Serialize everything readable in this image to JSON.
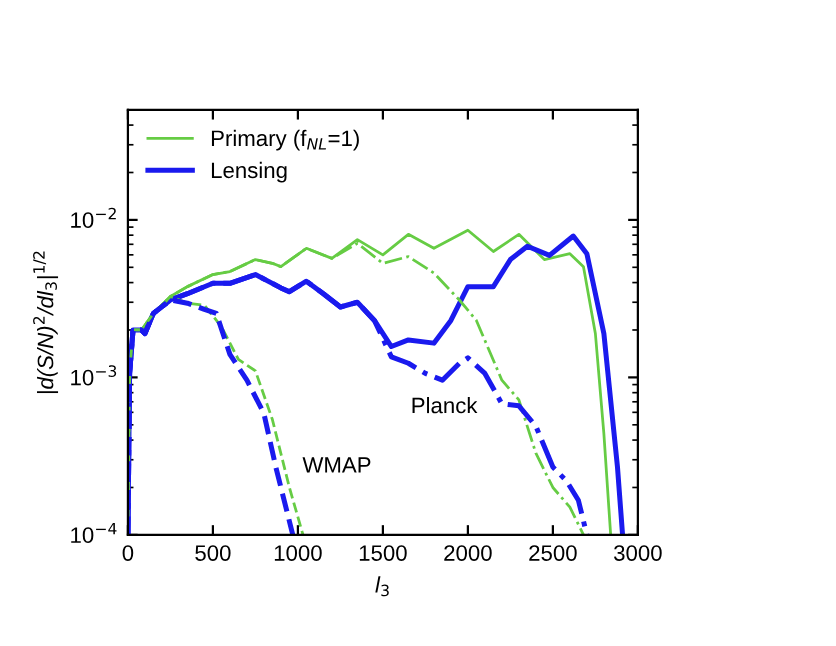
{
  "chart_data": {
    "type": "line",
    "xlabel": "l$_{3}$",
    "ylabel": "|d(S/N)$^{2}$/dl$_{3}$|$^{1/2}$",
    "log": "y",
    "legend": "top left",
    "grid": false,
    "marker": "none",
    "xlim": [
      0,
      3000
    ],
    "xticks": [
      0,
      500,
      1000,
      1500,
      2000,
      2500,
      3000
    ],
    "ylim": [
      0.0001,
      0.05
    ],
    "yticks": [
      {
        "value": 0.0001,
        "label": "10$^{−4}$"
      },
      {
        "value": 0.001,
        "label": "10$^{−3}$"
      },
      {
        "value": 0.01,
        "label": "10$^{−2}$"
      }
    ],
    "series": [
      {
        "name": "Primary (f$_{NL}$=1)",
        "color": "#66cc44",
        "line_style": "solid",
        "x": [
          0,
          10,
          30,
          80,
          150,
          250,
          350,
          500,
          600,
          750,
          850,
          900,
          1050,
          1200,
          1350,
          1500,
          1650,
          1800,
          2000,
          2150,
          2300,
          2450,
          2600,
          2680,
          2750,
          2800,
          2840
        ],
        "values": [
          0.0001,
          0.00106,
          0.002,
          0.002,
          0.00255,
          0.00326,
          0.00377,
          0.0045,
          0.0047,
          0.0056,
          0.0053,
          0.00505,
          0.0066,
          0.0057,
          0.0075,
          0.006,
          0.0081,
          0.0066,
          0.0086,
          0.0063,
          0.0081,
          0.0056,
          0.0061,
          0.00505,
          0.0019,
          0.00044,
          0.0001
        ]
      },
      {
        "name": "Lensing",
        "color": "#1a1aee",
        "line_style": "solid",
        "x": [
          0,
          10,
          30,
          80,
          100,
          150,
          250,
          350,
          500,
          600,
          750,
          900,
          950,
          1050,
          1150,
          1250,
          1350,
          1450,
          1550,
          1650,
          1800,
          1900,
          2000,
          2150,
          2250,
          2350,
          2480,
          2620,
          2700,
          2800,
          2880,
          2910
        ],
        "values": [
          0.0001,
          0.00106,
          0.002,
          0.002,
          0.0019,
          0.00255,
          0.0031,
          0.0034,
          0.00396,
          0.00396,
          0.0045,
          0.0037,
          0.0035,
          0.00408,
          0.0034,
          0.0028,
          0.003,
          0.0023,
          0.00157,
          0.00173,
          0.00165,
          0.0023,
          0.00377,
          0.00377,
          0.0056,
          0.0068,
          0.00595,
          0.0079,
          0.0061,
          0.0019,
          0.00027,
          0.0001
        ]
      },
      {
        "color": "#66cc44",
        "line_style": "dashdot",
        "x": [
          0,
          10,
          30,
          80,
          150,
          250,
          350,
          500,
          600,
          750,
          850,
          900,
          1050,
          1200,
          1350,
          1500,
          1650,
          1800,
          1950,
          2050,
          2200,
          2300,
          2400,
          2500,
          2600,
          2680
        ],
        "values": [
          0.0001,
          0.00106,
          0.002,
          0.002,
          0.00255,
          0.00326,
          0.00377,
          0.0045,
          0.0047,
          0.0056,
          0.0053,
          0.00505,
          0.0066,
          0.0057,
          0.0071,
          0.0053,
          0.00585,
          0.0046,
          0.0031,
          0.0023,
          0.00096,
          0.00072,
          0.00033,
          0.0002,
          0.00015,
          0.0001
        ]
      },
      {
        "color": "#1a1aee",
        "line_style": "dashdot",
        "x": [
          0,
          10,
          30,
          80,
          100,
          150,
          250,
          350,
          500,
          600,
          750,
          900,
          950,
          1050,
          1150,
          1250,
          1350,
          1450,
          1550,
          1650,
          1750,
          1850,
          1950,
          2000,
          2100,
          2200,
          2300,
          2400,
          2500,
          2580,
          2650,
          2700
        ],
        "values": [
          0.0001,
          0.00106,
          0.002,
          0.002,
          0.0019,
          0.00255,
          0.0031,
          0.0034,
          0.00396,
          0.00396,
          0.0045,
          0.0037,
          0.0035,
          0.00408,
          0.0034,
          0.0028,
          0.003,
          0.0023,
          0.00135,
          0.00123,
          0.00106,
          0.00096,
          0.00123,
          0.00133,
          0.00106,
          0.00068,
          0.00066,
          0.00049,
          0.00027,
          0.00022,
          0.000166,
          0.0001
        ]
      },
      {
        "color": "#66cc44",
        "line_style": "dashed",
        "x": [
          0,
          10,
          30,
          80,
          150,
          250,
          350,
          450,
          550,
          650,
          750,
          850,
          950,
          1030
        ],
        "values": [
          0.0001,
          0.00106,
          0.002,
          0.002,
          0.00255,
          0.00326,
          0.00296,
          0.00287,
          0.0021,
          0.0013,
          0.0011,
          0.00054,
          0.0002,
          0.0001
        ]
      },
      {
        "color": "#1a1aee",
        "line_style": "dashed",
        "x": [
          0,
          10,
          30,
          80,
          100,
          150,
          250,
          350,
          450,
          520,
          600,
          700,
          800,
          870,
          970
        ],
        "values": [
          0.0001,
          0.00106,
          0.002,
          0.002,
          0.0019,
          0.00255,
          0.0031,
          0.00296,
          0.0027,
          0.00255,
          0.0014,
          0.00096,
          0.00059,
          0.00027,
          0.0001
        ]
      }
    ],
    "annotations": [
      "WMAP",
      "Planck"
    ]
  }
}
